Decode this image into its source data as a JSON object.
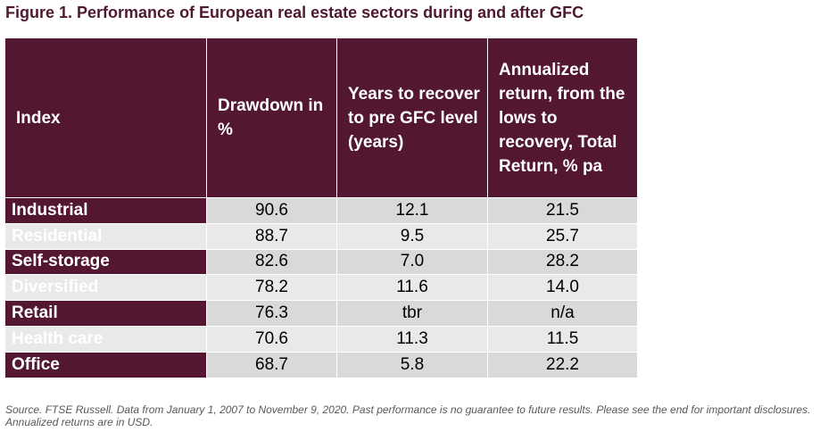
{
  "title": "Figure 1. Performance of European real estate sectors during and after GFC",
  "table": {
    "headers": [
      "Index",
      "Drawdown in %",
      "Years to recover to pre GFC level (years)",
      "Annualized return, from the lows to recovery, Total Return, % pa"
    ],
    "rows": [
      {
        "index": "Industrial",
        "drawdown": "90.6",
        "years": "12.1",
        "return": "21.5"
      },
      {
        "index": "Residential",
        "drawdown": "88.7",
        "years": "9.5",
        "return": "25.7"
      },
      {
        "index": "Self-storage",
        "drawdown": "82.6",
        "years": "7.0",
        "return": "28.2"
      },
      {
        "index": "Diversified",
        "drawdown": "78.2",
        "years": "11.6",
        "return": "14.0"
      },
      {
        "index": "Retail",
        "drawdown": "76.3",
        "years": "tbr",
        "return": "n/a"
      },
      {
        "index": "Health care",
        "drawdown": "70.6",
        "years": "11.3",
        "return": "11.5"
      },
      {
        "index": "Office",
        "drawdown": "68.7",
        "years": "5.8",
        "return": "22.2"
      }
    ]
  },
  "source": "Source. FTSE Russell. Data from January 1, 2007 to November 9, 2020. Past performance is no guarantee to future results. Please see the end for important disclosures. Annualized returns are in USD.",
  "colors": {
    "header_bg": "#541731",
    "title_color": "#4f1931",
    "cell_dark": "#d9d9d9",
    "cell_light": "#e9e9e9"
  }
}
